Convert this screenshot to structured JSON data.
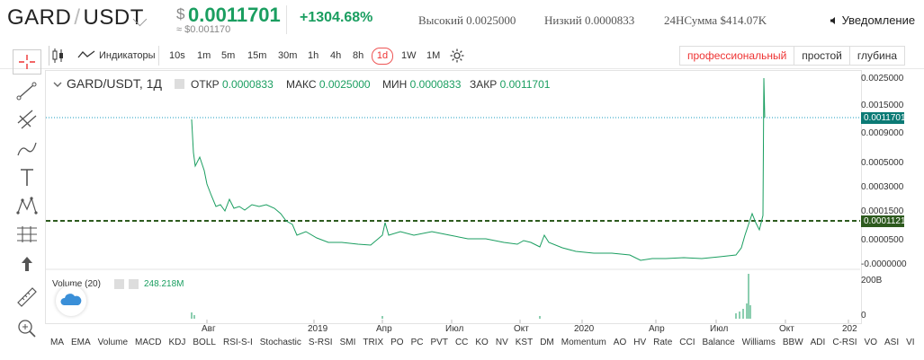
{
  "header": {
    "pair_base": "GARD",
    "pair_quote": "USDT",
    "price_currency": "$",
    "price": "0.0011701",
    "price_converted": "≈ $0.001170",
    "change": "+1304.68%",
    "high": "Высокий 0.0025000",
    "low": "Низкий 0.0000833",
    "volume_24h": "24HСумма $414.07K",
    "alert": "Уведомление"
  },
  "toolbar": {
    "indicators": "Индикаторы",
    "intervals": [
      "10s",
      "1m",
      "5m",
      "15m",
      "30m",
      "1h",
      "4h",
      "8h",
      "1d",
      "1W",
      "1M"
    ],
    "selected_interval": "1d",
    "modes": [
      "профессиональный",
      "простой",
      "глубина"
    ],
    "selected_mode": "профессиональный"
  },
  "legend": {
    "title": "GARD/USDT, 1Д",
    "open_label": "ОТКР",
    "open": "0.0000833",
    "high_label": "МАКС",
    "high": "0.0025000",
    "low_label": "МИН",
    "low": "0.0000833",
    "close_label": "ЗАКР",
    "close": "0.0011701"
  },
  "volume": {
    "label": "Volume (20)",
    "value": "248.218M",
    "axis_top": "200B",
    "axis_zero": "0"
  },
  "price_axis": [
    "0.0025000",
    "0.0015000",
    "0.0009000",
    "0.0005000",
    "0.0003000",
    "0.0001500",
    "0.0000500",
    "-0.0000000"
  ],
  "last_price_tag": "0.0011701",
  "line_tag": "0.0001121",
  "x_axis": [
    "Авг",
    "2019",
    "Апр",
    "Июл",
    "Окт",
    "2020",
    "Апр",
    "Июл",
    "Окт",
    "202"
  ],
  "indicators_bar": [
    "MA",
    "EMA",
    "Volume",
    "MACD",
    "KDJ",
    "BOLL",
    "RSI-S-I",
    "Stochastic",
    "S-RSI",
    "SMI",
    "TRIX",
    "PO",
    "PC",
    "PVT",
    "CC",
    "KO",
    "NV",
    "KST",
    "DM",
    "Momentum",
    "AO",
    "HV",
    "Rate",
    "CCI",
    "Balance",
    "Williams",
    "BBW",
    "ADI",
    "C-RSI",
    "VO",
    "ASI",
    "VI"
  ],
  "colors": {
    "green": "#1a9e60",
    "red": "#e33333",
    "teal": "#0b7a75",
    "dashed_line": "#2d5a1e"
  }
}
